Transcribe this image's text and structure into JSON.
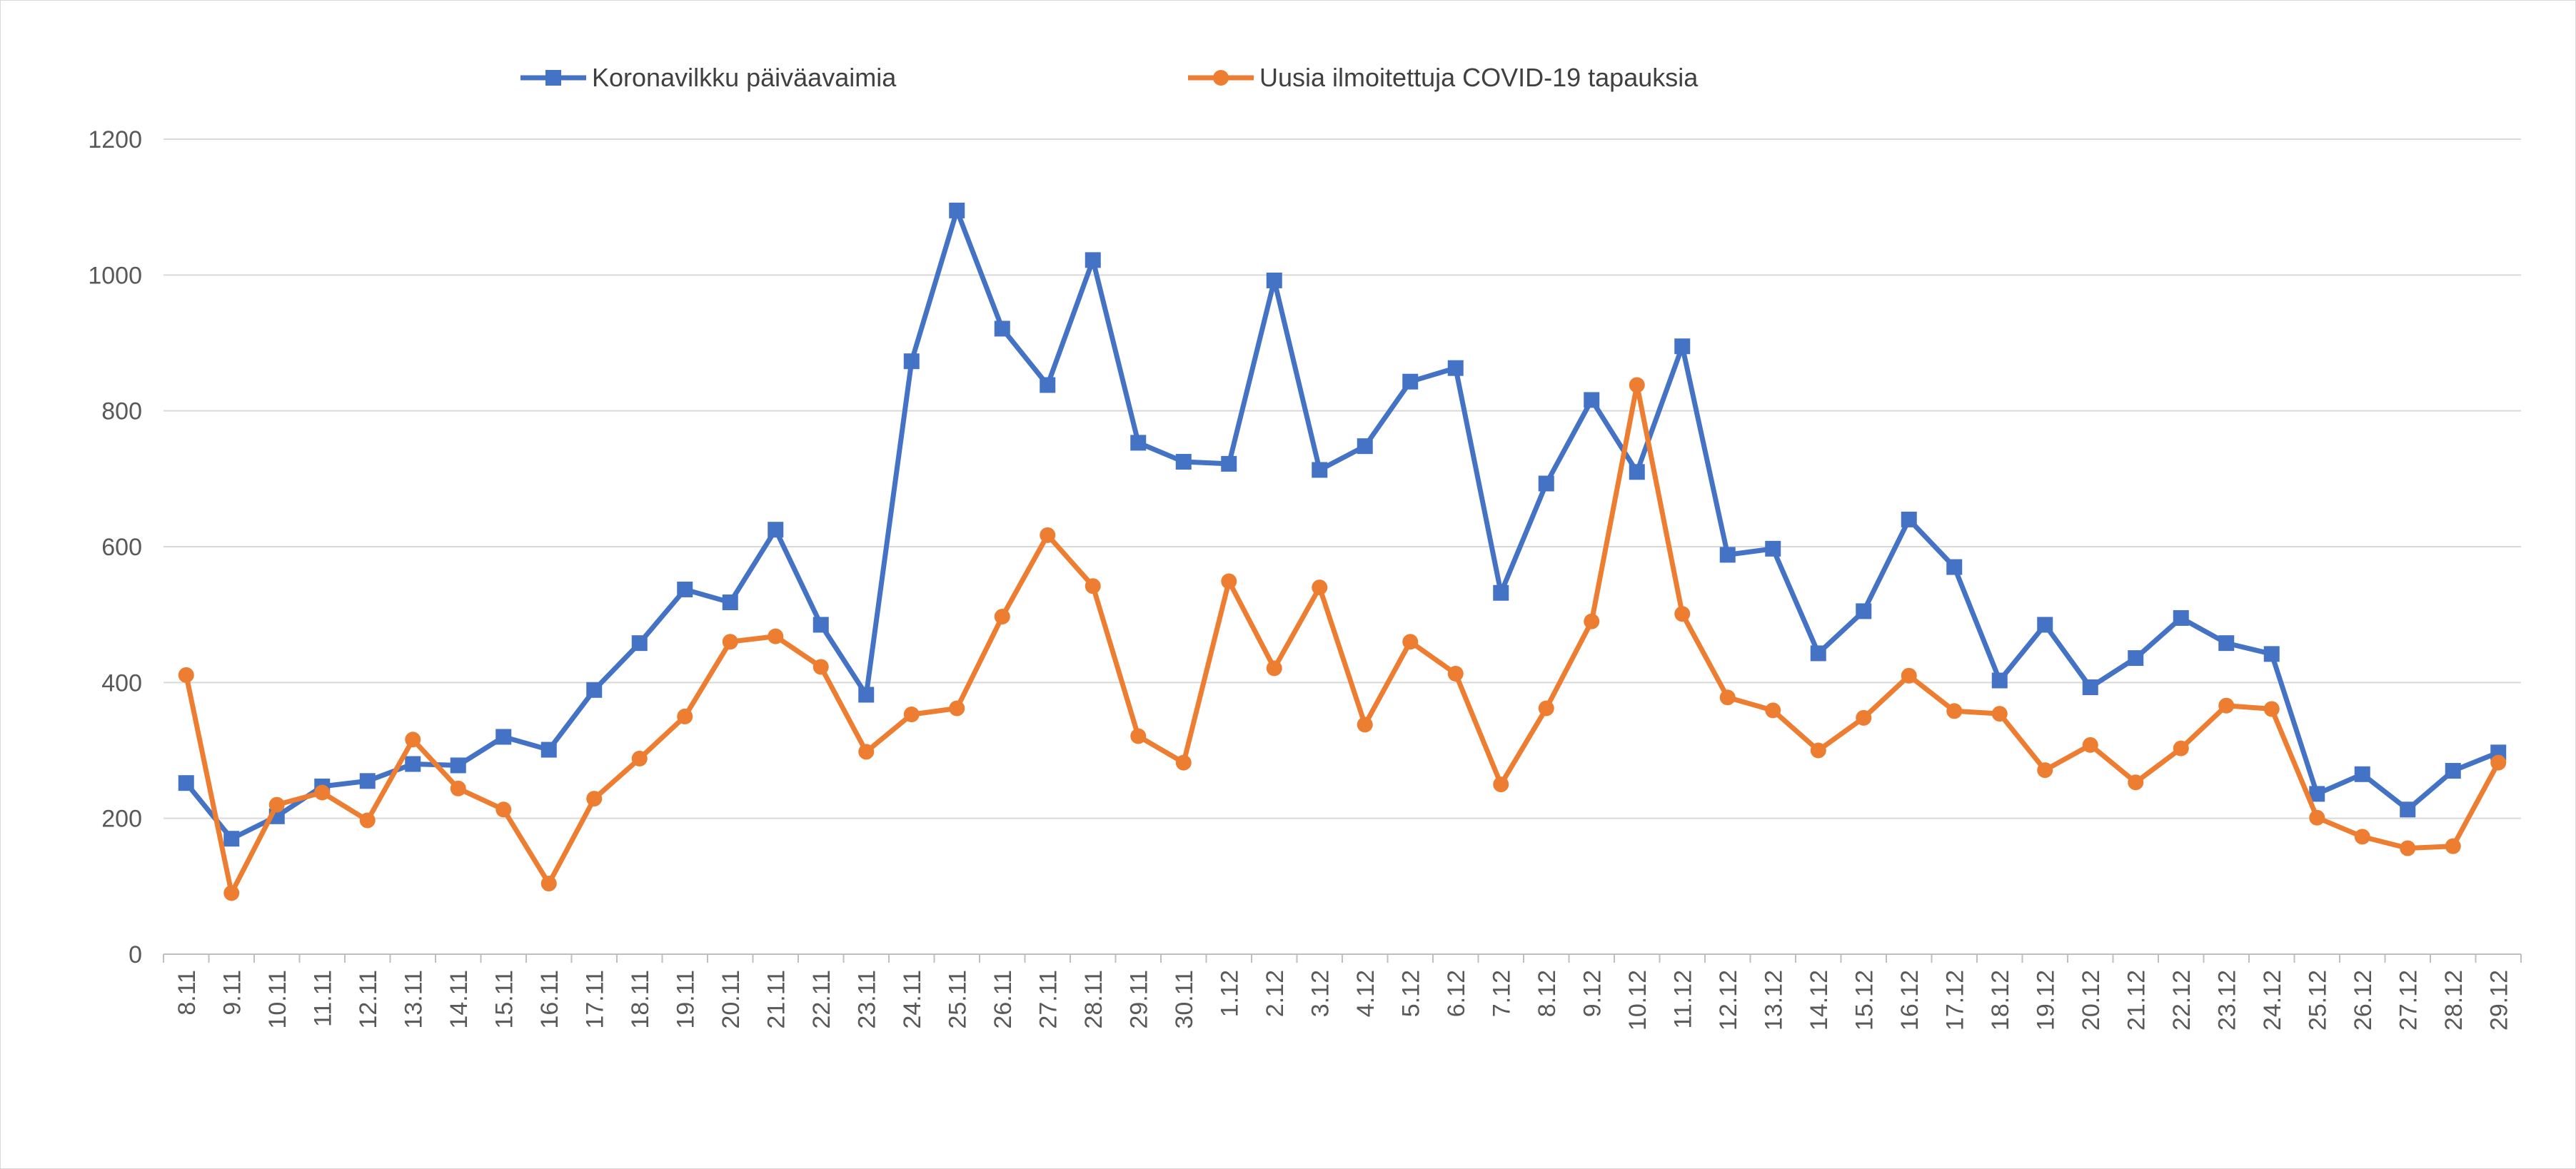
{
  "chart_data": {
    "type": "line",
    "title": "",
    "xlabel": "",
    "ylabel": "",
    "ylim": [
      0,
      1200
    ],
    "yticks": [
      0,
      200,
      400,
      600,
      800,
      1000,
      1200
    ],
    "grid": true,
    "legend_position": "top",
    "categories": [
      "8.11",
      "9.11",
      "10.11",
      "11.11",
      "12.11",
      "13.11",
      "14.11",
      "15.11",
      "16.11",
      "17.11",
      "18.11",
      "19.11",
      "20.11",
      "21.11",
      "22.11",
      "23.11",
      "24.11",
      "25.11",
      "26.11",
      "27.11",
      "28.11",
      "29.11",
      "30.11",
      "1.12",
      "2.12",
      "3.12",
      "4.12",
      "5.12",
      "6.12",
      "7.12",
      "8.12",
      "9.12",
      "10.12",
      "11.12",
      "12.12",
      "13.12",
      "14.12",
      "15.12",
      "16.12",
      "17.12",
      "18.12",
      "19.12",
      "20.12",
      "21.12",
      "22.12",
      "23.12",
      "24.12",
      "25.12",
      "26.12",
      "27.12",
      "28.12",
      "29.12"
    ],
    "series": [
      {
        "name": "Koronavilkku päiväavaimia",
        "color": "#4472C4",
        "marker": "square",
        "values": [
          252,
          170,
          203,
          247,
          255,
          280,
          278,
          320,
          301,
          389,
          458,
          537,
          518,
          625,
          485,
          382,
          873,
          1095,
          921,
          838,
          1022,
          753,
          725,
          722,
          992,
          713,
          748,
          843,
          863,
          532,
          693,
          816,
          710,
          895,
          588,
          597,
          443,
          505,
          640,
          570,
          403,
          485,
          393,
          436,
          495,
          458,
          442,
          236,
          265,
          213,
          270,
          297
        ]
      },
      {
        "name": "Uusia ilmoitettuja COVID-19 tapauksia",
        "color": "#ED7D31",
        "marker": "circle",
        "values": [
          411,
          90,
          220,
          238,
          197,
          316,
          244,
          213,
          104,
          229,
          288,
          350,
          460,
          468,
          423,
          298,
          353,
          362,
          497,
          617,
          542,
          321,
          282,
          549,
          421,
          540,
          338,
          460,
          413,
          250,
          362,
          490,
          838,
          501,
          378,
          359,
          300,
          348,
          410,
          358,
          354,
          271,
          308,
          253,
          303,
          366,
          361,
          201,
          173,
          156,
          159,
          282
        ]
      }
    ]
  }
}
